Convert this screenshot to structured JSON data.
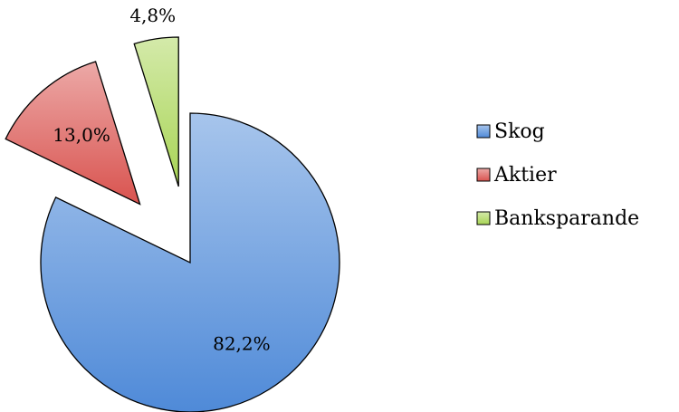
{
  "chart_data": {
    "type": "pie",
    "categories": [
      "Skog",
      "Aktier",
      "Banksparande"
    ],
    "values": [
      82.2,
      13.0,
      4.8
    ],
    "value_labels": [
      "82,2%",
      "13,0%",
      "4,8%"
    ],
    "colors": [
      "#4f8ad8",
      "#d9534f",
      "#a8d455"
    ],
    "legend": "right"
  }
}
